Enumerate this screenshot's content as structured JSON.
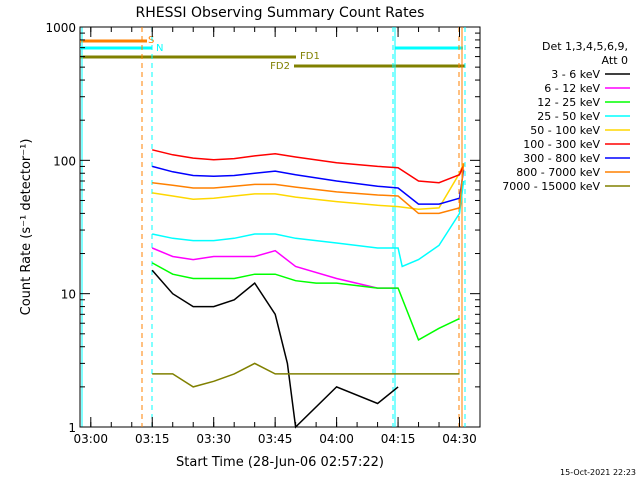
{
  "chart_data": {
    "type": "line",
    "title": "RHESSI Observing Summary Count Rates",
    "xlabel": "Start Time (28-Jun-06 02:57:22)",
    "ylabel": "Count Rate (s⁻¹ detector⁻¹)",
    "y_scale": "log",
    "ylim": [
      1,
      1000
    ],
    "xlim": [
      "02:57:22",
      "04:35:00"
    ],
    "x_ticks": [
      "03:00",
      "03:15",
      "03:30",
      "03:45",
      "04:00",
      "04:15",
      "04:30"
    ],
    "y_ticks": [
      "1",
      "10",
      "100",
      "1000"
    ],
    "legend_header": [
      "Det 1,3,4,5,6,9,",
      "Att 0"
    ],
    "legend_position": "right",
    "footer": "15-Oct-2021 22:23",
    "flags": [
      {
        "label": "S",
        "color": "#ff8000"
      },
      {
        "label": "N",
        "color": "#00ffff"
      },
      {
        "label": "FD1",
        "color": "#808000"
      },
      {
        "label": "FD2",
        "color": "#808000"
      }
    ],
    "series": [
      {
        "name": "3 - 6 keV",
        "color": "#000000",
        "x": [
          "03:15",
          "03:20",
          "03:25",
          "03:30",
          "03:35",
          "03:40",
          "03:45",
          "03:48",
          "03:50",
          "04:00",
          "04:10",
          "04:15"
        ],
        "values": [
          15,
          10,
          8,
          8,
          9,
          12,
          7,
          3,
          1,
          2,
          1.5,
          2
        ]
      },
      {
        "name": "6 - 12 keV",
        "color": "#ff00ff",
        "x": [
          "03:15",
          "03:20",
          "03:25",
          "03:30",
          "03:35",
          "03:40",
          "03:45",
          "03:50",
          "04:00",
          "04:10",
          "04:15"
        ],
        "values": [
          22,
          19,
          18,
          19,
          19,
          19,
          21,
          16,
          13,
          11,
          11
        ]
      },
      {
        "name": "12 - 25 keV",
        "color": "#00ff00",
        "x": [
          "03:15",
          "03:20",
          "03:25",
          "03:30",
          "03:35",
          "03:40",
          "03:45",
          "03:50",
          "03:55",
          "04:00",
          "04:10",
          "04:15",
          "04:20",
          "04:25",
          "04:30"
        ],
        "values": [
          17,
          14,
          13,
          13,
          13,
          14,
          14,
          12.5,
          12,
          12,
          11,
          11,
          4.5,
          5.5,
          6.5
        ]
      },
      {
        "name": "25 - 50 keV",
        "color": "#00ffff",
        "x": [
          "03:15",
          "03:20",
          "03:25",
          "03:30",
          "03:35",
          "03:40",
          "03:45",
          "03:50",
          "04:00",
          "04:10",
          "04:15",
          "04:16",
          "04:20",
          "04:25",
          "04:30",
          "04:31"
        ],
        "values": [
          28,
          26,
          25,
          25,
          26,
          28,
          28,
          26,
          24,
          22,
          22,
          16,
          18,
          23,
          40,
          70
        ]
      },
      {
        "name": "50 - 100 keV",
        "color": "#ffd700",
        "x": [
          "03:15",
          "03:20",
          "03:25",
          "03:30",
          "03:35",
          "03:40",
          "03:45",
          "03:50",
          "04:00",
          "04:10",
          "04:15",
          "04:20",
          "04:25",
          "04:30",
          "04:31"
        ],
        "values": [
          57,
          54,
          51,
          52,
          54,
          56,
          56,
          53,
          49,
          46,
          45,
          43,
          44,
          80,
          95
        ]
      },
      {
        "name": "100 - 300 keV",
        "color": "#ff0000",
        "x": [
          "03:15",
          "03:20",
          "03:25",
          "03:30",
          "03:35",
          "03:40",
          "03:45",
          "03:50",
          "04:00",
          "04:10",
          "04:15",
          "04:20",
          "04:25",
          "04:30",
          "04:31"
        ],
        "values": [
          120,
          110,
          104,
          101,
          103,
          108,
          112,
          106,
          96,
          90,
          88,
          70,
          68,
          78,
          92
        ]
      },
      {
        "name": "300 - 800 keV",
        "color": "#0000ff",
        "x": [
          "03:15",
          "03:20",
          "03:25",
          "03:30",
          "03:35",
          "03:40",
          "03:45",
          "03:50",
          "04:00",
          "04:10",
          "04:15",
          "04:20",
          "04:25",
          "04:30",
          "04:31"
        ],
        "values": [
          90,
          82,
          77,
          76,
          77,
          80,
          83,
          78,
          70,
          64,
          62,
          47,
          47,
          52,
          85
        ]
      },
      {
        "name": "800 - 7000 keV",
        "color": "#ff8000",
        "x": [
          "03:15",
          "03:20",
          "03:25",
          "03:30",
          "03:35",
          "03:40",
          "03:45",
          "03:50",
          "04:00",
          "04:10",
          "04:15",
          "04:20",
          "04:25",
          "04:30",
          "04:31"
        ],
        "values": [
          68,
          65,
          62,
          62,
          64,
          66,
          66,
          63,
          58,
          55,
          54,
          40,
          40,
          44,
          95
        ]
      },
      {
        "name": "7000 - 15000 keV",
        "color": "#808000",
        "x": [
          "03:15",
          "03:20",
          "03:25",
          "03:30",
          "03:35",
          "03:40",
          "03:45",
          "03:50",
          "04:00",
          "04:10",
          "04:15",
          "04:20",
          "04:25",
          "04:30"
        ],
        "values": [
          2.5,
          2.5,
          2,
          2.2,
          2.5,
          3,
          2.5,
          2.5,
          2.5,
          2.5,
          2.5,
          2.5,
          2.5,
          2.5
        ]
      }
    ]
  }
}
